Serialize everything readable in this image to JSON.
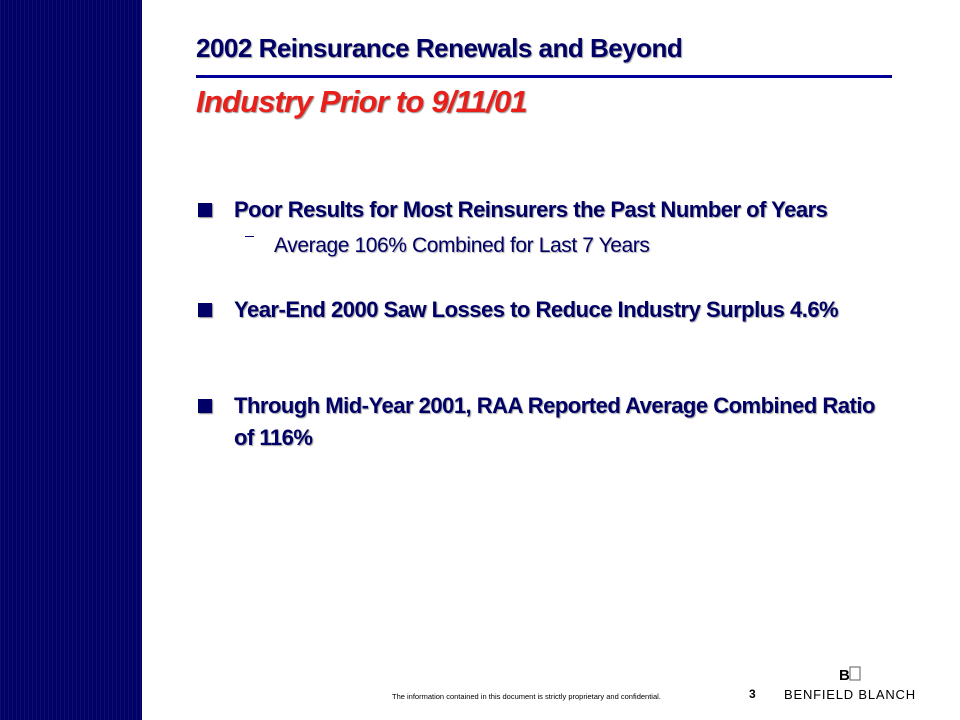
{
  "slide": {
    "heading": "2002 Reinsurance Renewals and Beyond",
    "subheading": "Industry Prior to 9/11/01",
    "bullets": [
      {
        "text": "Poor Results for Most Reinsurers the Past Number of Years",
        "subitems": [
          "Average 106% Combined for Last 7 Years"
        ]
      },
      {
        "text": "Year-End 2000 Saw Losses to Reduce Industry Surplus 4.6%"
      },
      {
        "text": "Through Mid-Year 2001, RAA Reported Average Combined Ratio of 116%"
      }
    ]
  },
  "footer": {
    "note": "The information contained in this document is strictly proprietary and confidential.",
    "page_number": "3",
    "logo_text": "BENFIELD BLANCH",
    "logo_mark": "BG"
  },
  "colors": {
    "sidebar": "#000066",
    "heading": "#000066",
    "subheading": "#e8201c",
    "body_text": "#000066"
  }
}
